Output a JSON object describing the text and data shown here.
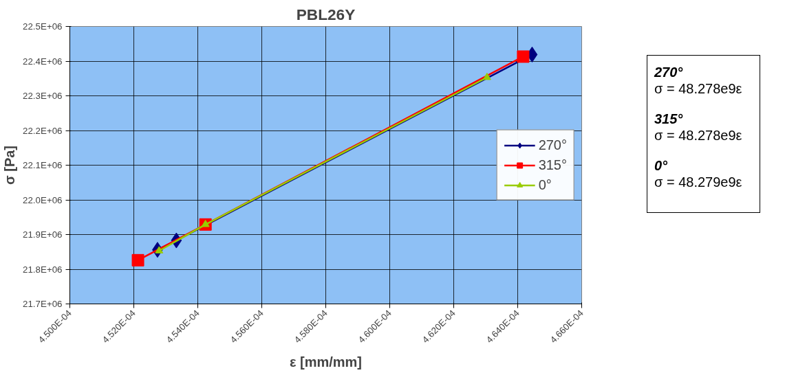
{
  "chart_data": {
    "type": "line",
    "title": "PBL26Y",
    "xlabel": "ε [mm/mm]",
    "ylabel": "σ [Pa]",
    "series": [
      {
        "name": "270°",
        "color": "#000080",
        "marker": "diamond",
        "x": [
          0.00045274,
          0.00045333,
          0.00046445
        ],
        "values": [
          21856000,
          21883000,
          22419000
        ]
      },
      {
        "name": "315°",
        "color": "#ff0000",
        "marker": "square",
        "x": [
          0.00045213,
          0.00045424,
          0.00046417
        ],
        "values": [
          21826000,
          21929000,
          22413000
        ]
      },
      {
        "name": "0°",
        "color": "#99cc00",
        "marker": "triangle",
        "x": [
          0.00045279,
          0.00045424,
          0.00046304
        ],
        "values": [
          21853000,
          21929000,
          22353000
        ]
      }
    ],
    "xlim": [
      0.00045,
      0.000466
    ],
    "xticks": [
      {
        "value": 0.00045,
        "label": "4.500E-04"
      },
      {
        "value": 0.000452,
        "label": "4.520E-04"
      },
      {
        "value": 0.000454,
        "label": "4.540E-04"
      },
      {
        "value": 0.000456,
        "label": "4.560E-04"
      },
      {
        "value": 0.000458,
        "label": "4.580E-04"
      },
      {
        "value": 0.00046,
        "label": "4.600E-04"
      },
      {
        "value": 0.000462,
        "label": "4.620E-04"
      },
      {
        "value": 0.000464,
        "label": "4.640E-04"
      },
      {
        "value": 0.000466,
        "label": "4.660E-04"
      }
    ],
    "ylim": [
      21700000,
      22500000
    ],
    "yticks": [
      {
        "value": 21700000,
        "label": "21.7E+06"
      },
      {
        "value": 21800000,
        "label": "21.8E+06"
      },
      {
        "value": 21900000,
        "label": "21.9E+06"
      },
      {
        "value": 22000000,
        "label": "22.0E+06"
      },
      {
        "value": 22100000,
        "label": "22.1E+06"
      },
      {
        "value": 22200000,
        "label": "22.2E+06"
      },
      {
        "value": 22300000,
        "label": "22.3E+06"
      },
      {
        "value": 22400000,
        "label": "22.4E+06"
      },
      {
        "value": 22500000,
        "label": "22.5E+06"
      }
    ],
    "grid": true,
    "legend": "right",
    "annotations": [
      "270°",
      "σ = 48.278e9ε",
      "315°",
      "σ = 48.278e9ε",
      "0°",
      "σ = 48.279e9ε"
    ]
  }
}
